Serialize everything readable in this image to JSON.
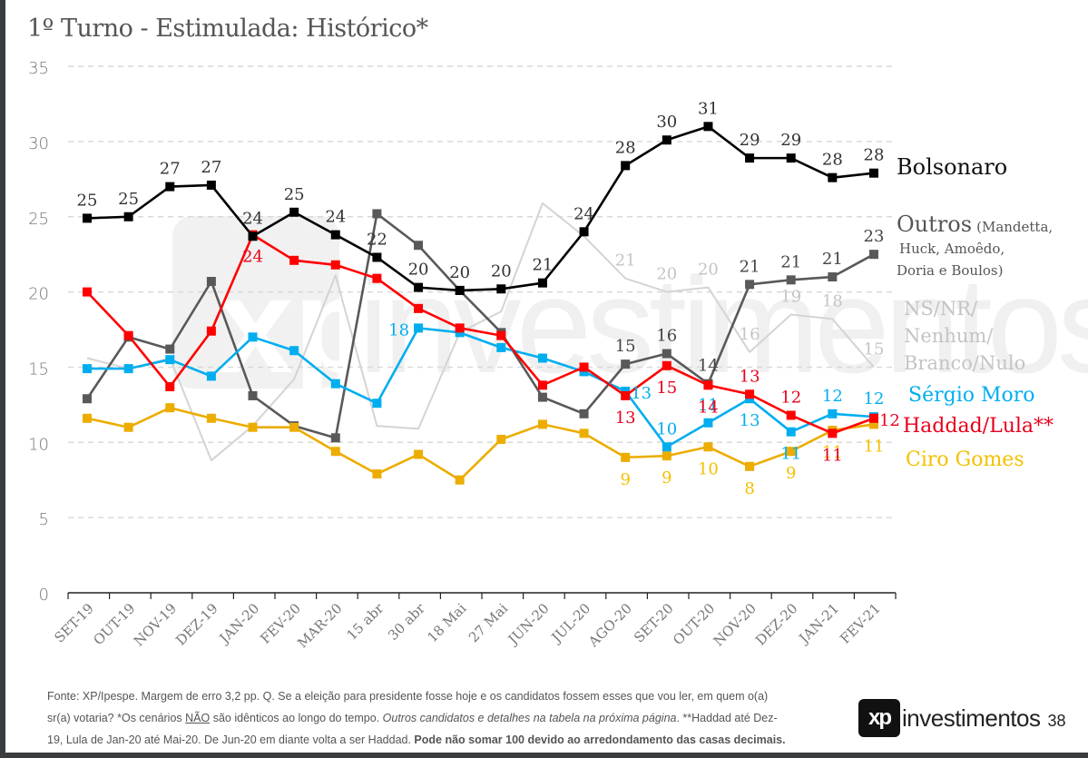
{
  "page": {
    "title": "1º Turno - Estimulada: Histórico*",
    "page_number": "38",
    "logo": {
      "mark": "xp",
      "text": "investimentos"
    },
    "footer": {
      "line1": "Fonte: XP/Ipespe. Margem de erro 3,2 pp. Q. Se a eleição para presidente fosse hoje e os candidatos fossem esses que vou ler, em quem o(a)",
      "line2_a": "sr(a) votaria? *Os cenários ",
      "line2_u": "NÃO",
      "line2_b": " são idênticos ao longo do tempo. ",
      "line2_i": "Outros candidatos e detalhes na tabela na próxima página",
      "line2_c": ". **Haddad até Dez-",
      "line3_a": "19, Lula de Jan-20 até Mai-20. De Jun-20 em diante volta a ser Haddad. ",
      "line3_b": "Pode não somar 100 devido ao arredondamento das casas decimais."
    }
  },
  "chart_data": {
    "type": "line",
    "title": "1º Turno - Estimulada: Histórico*",
    "xlabel": "",
    "ylabel": "",
    "ylim": [
      0,
      35
    ],
    "yticks": [
      0,
      5,
      10,
      15,
      20,
      25,
      30,
      35
    ],
    "grid": "horizontal-dashed",
    "legend": "right (inline labels at line ends)",
    "categories": [
      "SET-19",
      "OUT-19",
      "NOV-19",
      "DEZ-19",
      "JAN-20",
      "FEV-20",
      "MAR-20",
      "15 abr",
      "30 abr",
      "18 Mai",
      "27 Mai",
      "JUN-20",
      "JUL-20",
      "AGO-20",
      "SET-20",
      "OUT-20",
      "NOV-20",
      "DEZ-20",
      "JAN-21",
      "FEV-21"
    ],
    "series": [
      {
        "name": "NS/NR/ Nenhum/ Branco/Nulo",
        "legend_lines": [
          "NS/NR/",
          "Nenhum/",
          "Branco/Nulo"
        ],
        "color": "#d4d4d4",
        "label_color": "#c4c4c4",
        "marker": "none",
        "values": [
          15.6,
          14.9,
          15.6,
          8.8,
          11.1,
          14.2,
          21.1,
          11.1,
          10.9,
          17.3,
          18.7,
          25.9,
          23.7,
          20.9,
          20.0,
          20.3,
          16.0,
          18.5,
          18.2,
          15.0
        ],
        "labels": [
          null,
          null,
          null,
          null,
          null,
          null,
          null,
          null,
          null,
          null,
          null,
          null,
          null,
          "21",
          "20",
          "20",
          "16",
          "19",
          "18",
          "15"
        ],
        "label_pos": [
          null,
          null,
          null,
          null,
          null,
          null,
          null,
          null,
          null,
          null,
          null,
          null,
          null,
          "above",
          "above",
          "above",
          "above",
          "above",
          "above",
          "above"
        ]
      },
      {
        "name": "Outros (Mandetta, Huck, Amoêdo, Doria e Boulos)",
        "legend_lines": [
          "Outros",
          "(Mandetta,",
          "Huck, Amoêdo,",
          "Doria e Boulos)"
        ],
        "color": "#595959",
        "label_color": "#444444",
        "marker": "square",
        "values": [
          12.9,
          17.0,
          16.2,
          20.7,
          13.1,
          11.1,
          10.3,
          25.2,
          23.1,
          20.1,
          17.3,
          13.0,
          11.9,
          15.2,
          15.9,
          13.9,
          20.5,
          20.8,
          21.0,
          22.5
        ],
        "labels": [
          null,
          null,
          null,
          null,
          null,
          null,
          null,
          null,
          null,
          null,
          null,
          null,
          null,
          "15",
          "16",
          "14",
          "21",
          "21",
          "21",
          "23"
        ],
        "label_pos": [
          null,
          null,
          null,
          null,
          null,
          null,
          null,
          null,
          null,
          null,
          null,
          null,
          null,
          "above",
          "above",
          "above",
          "above",
          "above",
          "above",
          "above"
        ]
      },
      {
        "name": "Ciro Gomes",
        "legend_lines": [
          "Ciro Gomes"
        ],
        "color": "#ecad00",
        "label_color": "#f5c000",
        "marker": "square",
        "values": [
          11.6,
          11.0,
          12.3,
          11.6,
          11.0,
          11.0,
          9.4,
          7.9,
          9.2,
          7.5,
          10.2,
          11.2,
          10.6,
          9.0,
          9.1,
          9.7,
          8.4,
          9.4,
          10.8,
          11.2
        ],
        "labels": [
          null,
          null,
          null,
          null,
          null,
          null,
          null,
          null,
          null,
          null,
          null,
          null,
          null,
          "9",
          "9",
          "10",
          "8",
          "9",
          "11",
          "11"
        ],
        "label_pos": [
          null,
          null,
          null,
          null,
          null,
          null,
          null,
          null,
          null,
          null,
          null,
          null,
          null,
          "below",
          "below",
          "below",
          "below",
          "below",
          "below",
          "below"
        ]
      },
      {
        "name": "Sérgio Moro",
        "legend_lines": [
          "Sérgio Moro"
        ],
        "color": "#00aeef",
        "label_color": "#00aeef",
        "marker": "square",
        "values": [
          14.9,
          14.9,
          15.5,
          14.4,
          17.0,
          16.1,
          13.9,
          12.6,
          17.6,
          17.3,
          16.3,
          15.6,
          14.7,
          13.4,
          9.7,
          11.3,
          12.9,
          10.7,
          11.9,
          11.7
        ],
        "labels": [
          null,
          null,
          null,
          null,
          null,
          null,
          null,
          null,
          "18",
          null,
          null,
          null,
          null,
          "13",
          "10",
          "11",
          "13",
          "11",
          "12",
          "12"
        ],
        "label_pos": [
          null,
          null,
          null,
          null,
          null,
          null,
          null,
          null,
          "left",
          null,
          null,
          null,
          null,
          "right",
          "above",
          "above",
          "below",
          "below",
          "above",
          "above"
        ]
      },
      {
        "name": "Haddad/Lula**",
        "legend_lines": [
          "Haddad/Lula**"
        ],
        "color": "#ff0000",
        "label_color": "#e8001c",
        "marker": "square",
        "values": [
          20.0,
          17.1,
          13.7,
          17.4,
          23.8,
          22.1,
          21.8,
          20.9,
          18.9,
          17.6,
          17.1,
          13.8,
          15.0,
          13.1,
          15.1,
          13.8,
          13.2,
          11.8,
          10.6,
          11.6
        ],
        "labels": [
          null,
          null,
          null,
          null,
          "24",
          null,
          null,
          null,
          null,
          null,
          null,
          null,
          null,
          "13",
          "15",
          "14",
          "13",
          "12",
          "11",
          "12"
        ],
        "label_pos": [
          null,
          null,
          null,
          null,
          "below",
          null,
          null,
          null,
          null,
          null,
          null,
          null,
          null,
          "below",
          "below",
          "below",
          "above",
          "above",
          "below",
          "right"
        ]
      },
      {
        "name": "Bolsonaro",
        "legend_lines": [
          "Bolsonaro"
        ],
        "color": "#000000",
        "label_color": "#333333",
        "marker": "square",
        "values": [
          24.9,
          25.0,
          27.0,
          27.1,
          23.7,
          25.3,
          23.8,
          22.3,
          20.3,
          20.1,
          20.2,
          20.6,
          24.0,
          28.4,
          30.1,
          31.0,
          28.9,
          28.9,
          27.6,
          27.9
        ],
        "labels": [
          "25",
          "25",
          "27",
          "27",
          "24",
          "25",
          "24",
          "22",
          "20",
          "20",
          "20",
          "21",
          "24",
          "28",
          "30",
          "31",
          "29",
          "29",
          "28",
          "28"
        ],
        "label_pos": [
          "above",
          "above",
          "above",
          "above",
          "above",
          "above",
          "above",
          "above",
          "above",
          "above",
          "above",
          "above",
          "above",
          "above",
          "above",
          "above",
          "above",
          "above",
          "above",
          "above"
        ]
      }
    ]
  }
}
